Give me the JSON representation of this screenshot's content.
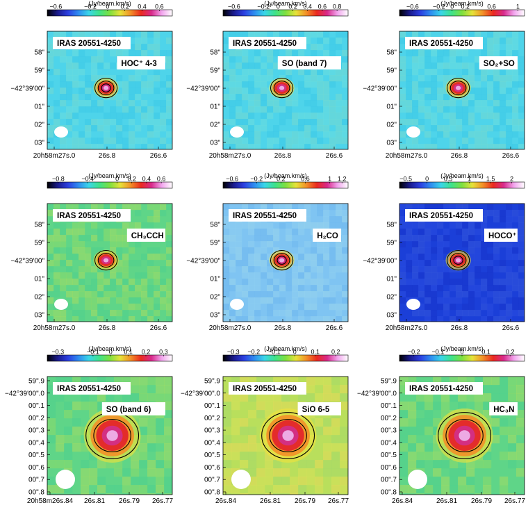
{
  "figure": {
    "source_name": "IRAS 20551-4250",
    "colorbar_unit": "(Jy/beam.km/s)"
  },
  "chart_data": [
    {
      "type": "heatmap",
      "molecule": "HOC⁺ 4-3",
      "colorbar_ticks": [
        "−0.6",
        "−0.2",
        "0",
        "0.2",
        "0.4",
        "0.6"
      ],
      "cb_range": [
        -0.7,
        0.75
      ],
      "cb_tick_values": [
        -0.6,
        -0.2,
        0,
        0.2,
        0.4,
        0.6
      ],
      "ytick_labels": [
        "58\"",
        "59\"",
        "−42°39'00\"",
        "01\"",
        "02\"",
        "03\""
      ],
      "xtick_labels": [
        "20h58m27s.0",
        "26s.8",
        "26s.6"
      ],
      "background": "cyan",
      "contours": 3
    },
    {
      "type": "heatmap",
      "molecule": "SO (band 7)",
      "colorbar_ticks": [
        "−0.6",
        "−0.2",
        "0",
        "0.2",
        "0.4",
        "0.6",
        "0.8"
      ],
      "cb_range": [
        -0.75,
        0.95
      ],
      "cb_tick_values": [
        -0.6,
        -0.2,
        0,
        0.2,
        0.4,
        0.6,
        0.8
      ],
      "ytick_labels": [
        "58\"",
        "59\"",
        "−42°39'00\"",
        "01\"",
        "02\"",
        "03\""
      ],
      "xtick_labels": [
        "20h58m27s.0",
        "26s.8",
        "26s.6"
      ],
      "background": "cyan",
      "contours": 2
    },
    {
      "type": "heatmap",
      "molecule": "SO₂+SO",
      "colorbar_ticks": [
        "−0.6",
        "−0.2",
        "0",
        "0.2",
        "0.6",
        "1"
      ],
      "cb_range": [
        -0.8,
        1.1
      ],
      "cb_tick_values": [
        -0.6,
        -0.2,
        0,
        0.2,
        0.6,
        1
      ],
      "ytick_labels": [
        "58\"",
        "59\"",
        "−42°39'00\"",
        "01\"",
        "02\"",
        "03\""
      ],
      "xtick_labels": [
        "20h58m27s.0",
        "26s.8",
        "26s.6"
      ],
      "background": "cyan",
      "contours": 2
    },
    {
      "type": "heatmap",
      "molecule": "CH₃CCH",
      "colorbar_ticks": [
        "−0.8",
        "−0.4",
        "0",
        "0.2",
        "0.4",
        "0.6"
      ],
      "cb_range": [
        -0.95,
        0.75
      ],
      "cb_tick_values": [
        -0.8,
        -0.4,
        0,
        0.2,
        0.4,
        0.6
      ],
      "ytick_labels": [
        "58\"",
        "59\"",
        "−42°39'00\"",
        "01\"",
        "02\"",
        "03\""
      ],
      "xtick_labels": [
        "20h58m27s.0",
        "26s.8",
        "26s.6"
      ],
      "background": "green",
      "contours": 2
    },
    {
      "type": "heatmap",
      "molecule": "H₂CO",
      "colorbar_ticks": [
        "−0.6",
        "−0.2",
        "0.2",
        "0.6",
        "1",
        "1.2"
      ],
      "cb_range": [
        -0.75,
        1.3
      ],
      "cb_tick_values": [
        -0.6,
        -0.2,
        0.2,
        0.6,
        1,
        1.2
      ],
      "ytick_labels": [
        "58\"",
        "59\"",
        "−42°39'00\"",
        "01\"",
        "02\"",
        "03\""
      ],
      "xtick_labels": [
        "20h58m27s.0",
        "26s.8",
        "26s.6"
      ],
      "background": "lightblue",
      "contours": 3
    },
    {
      "type": "heatmap",
      "molecule": "HOCO⁺",
      "colorbar_ticks": [
        "−0.5",
        "0",
        "0.5",
        "1",
        "1.5",
        "2"
      ],
      "cb_range": [
        -0.65,
        2.3
      ],
      "cb_tick_values": [
        -0.5,
        0,
        0.5,
        1,
        1.5,
        2
      ],
      "ytick_labels": [
        "58\"",
        "59\"",
        "−42°39'00\"",
        "01\"",
        "02\"",
        "03\""
      ],
      "xtick_labels": [
        "20h58m27s.0",
        "26s.8",
        "26s.6"
      ],
      "background": "darkblue",
      "contours": 3
    },
    {
      "type": "heatmap",
      "molecule": "SO (band 6)",
      "colorbar_ticks": [
        "−0.3",
        "−0.1",
        "0",
        "0.1",
        "0.2",
        "0.3"
      ],
      "cb_range": [
        -0.36,
        0.35
      ],
      "cb_tick_values": [
        -0.3,
        -0.1,
        0,
        0.1,
        0.2,
        0.3
      ],
      "ytick_labels": [
        "59\".9",
        "−42°39'00\".0",
        "00\".1",
        "00\".2",
        "00\".3",
        "00\".4",
        "00\".5",
        "00\".6",
        "00\".7",
        "00\".8"
      ],
      "xtick_labels": [
        "20h58m26s.84",
        "26s.81",
        "26s.79",
        "26s.77"
      ],
      "background": "green",
      "contours": 2
    },
    {
      "type": "heatmap",
      "molecule": "SiO 6-5",
      "colorbar_ticks": [
        "−0.3",
        "−0.2",
        "−0.1",
        "0",
        "0.1",
        "0.2"
      ],
      "cb_range": [
        -0.35,
        0.26
      ],
      "cb_tick_values": [
        -0.3,
        -0.2,
        -0.1,
        0,
        0.1,
        0.2
      ],
      "ytick_labels": [
        "59\".9",
        "−42°39'00\".0",
        "00\".1",
        "00\".2",
        "00\".3",
        "00\".4",
        "00\".5",
        "00\".6",
        "00\".7",
        "00\".8"
      ],
      "xtick_labels": [
        "26s.84",
        "26s.81",
        "26s.79",
        "26s.77"
      ],
      "background": "yellow",
      "contours": 2
    },
    {
      "type": "heatmap",
      "molecule": "HC₃N",
      "colorbar_ticks": [
        "−0.2",
        "−0.1",
        "0",
        "0.1",
        "0.2"
      ],
      "cb_range": [
        -0.26,
        0.26
      ],
      "cb_tick_values": [
        -0.2,
        -0.1,
        0,
        0.1,
        0.2
      ],
      "ytick_labels": [
        "59\".9",
        "−42°39'00\".0",
        "00\".1",
        "00\".2",
        "00\".3",
        "00\".4",
        "00\".5",
        "00\".6",
        "00\".7",
        "00\".8"
      ],
      "xtick_labels": [
        "26s.84",
        "26s.81",
        "26s.79",
        "26s.77"
      ],
      "background": "green",
      "contours": 2
    }
  ]
}
